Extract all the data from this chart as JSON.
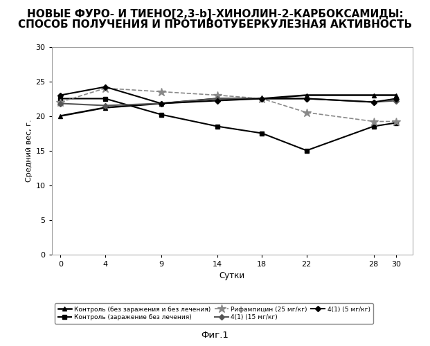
{
  "title_line1": "НОВЫЕ ФУРО- И ТИЕНО[2,3-b]-ХИНОЛИН-2-КАРБОКСАМИДЫ:",
  "title_line2": "СПОСОБ ПОЛУЧЕНИЯ И ПРОТИВОТУБЕРКУЛЕЗНАЯ АКТИВНОСТЬ",
  "xlabel": "Сутки",
  "ylabel": "Средний вес, г.",
  "caption": "Фиг.1",
  "x_ticks": [
    0,
    4,
    9,
    14,
    18,
    22,
    28,
    30
  ],
  "ylim": [
    0,
    30
  ],
  "yticks": [
    0,
    5,
    10,
    15,
    20,
    25,
    30
  ],
  "series": [
    {
      "label": "Контроль (без заражения и без лечения)",
      "x": [
        0,
        4,
        9,
        14,
        18,
        22,
        28,
        30
      ],
      "y": [
        20.0,
        21.2,
        21.8,
        22.5,
        22.5,
        23.0,
        23.0,
        23.0
      ],
      "color": "#000000",
      "marker": "^",
      "markersize": 5,
      "linewidth": 1.5,
      "linestyle": "-"
    },
    {
      "label": "Контроль (заражение без лечения)",
      "x": [
        0,
        4,
        9,
        14,
        18,
        22,
        28,
        30
      ],
      "y": [
        22.5,
        22.5,
        20.2,
        18.5,
        17.5,
        15.0,
        18.5,
        19.0
      ],
      "color": "#000000",
      "marker": "s",
      "markersize": 5,
      "linewidth": 1.5,
      "linestyle": "-"
    },
    {
      "label": "Рифампицин (25 мг/кг)",
      "x": [
        0,
        4,
        9,
        14,
        18,
        22,
        28,
        30
      ],
      "y": [
        22.0,
        24.0,
        23.5,
        23.0,
        22.5,
        20.5,
        19.2,
        19.2
      ],
      "color": "#777777",
      "marker": "*",
      "markersize": 8,
      "linewidth": 1.2,
      "linestyle": "--"
    },
    {
      "label": "4(1) (15 мг/кг)",
      "x": [
        0,
        4,
        9,
        14,
        18,
        22,
        28,
        30
      ],
      "y": [
        21.8,
        21.5,
        21.8,
        22.5,
        22.5,
        22.5,
        22.0,
        22.2
      ],
      "color": "#555555",
      "marker": "D",
      "markersize": 4,
      "linewidth": 1.5,
      "linestyle": "-"
    },
    {
      "label": "4(1) (5 мг/кг)",
      "x": [
        0,
        4,
        9,
        14,
        18,
        22,
        28,
        30
      ],
      "y": [
        23.0,
        24.2,
        21.8,
        22.2,
        22.5,
        22.5,
        22.0,
        22.5
      ],
      "color": "#000000",
      "marker": "D",
      "markersize": 4,
      "linewidth": 1.5,
      "linestyle": "-"
    }
  ],
  "legend_labels": [
    "Контроль (без заражения и без лечения)",
    "Контроль (заражение без лечения)",
    "Рифампицин (25 мг/кг)",
    "4(1) (15 мг/кг)",
    "4(1) (5 мг/кг)"
  ]
}
